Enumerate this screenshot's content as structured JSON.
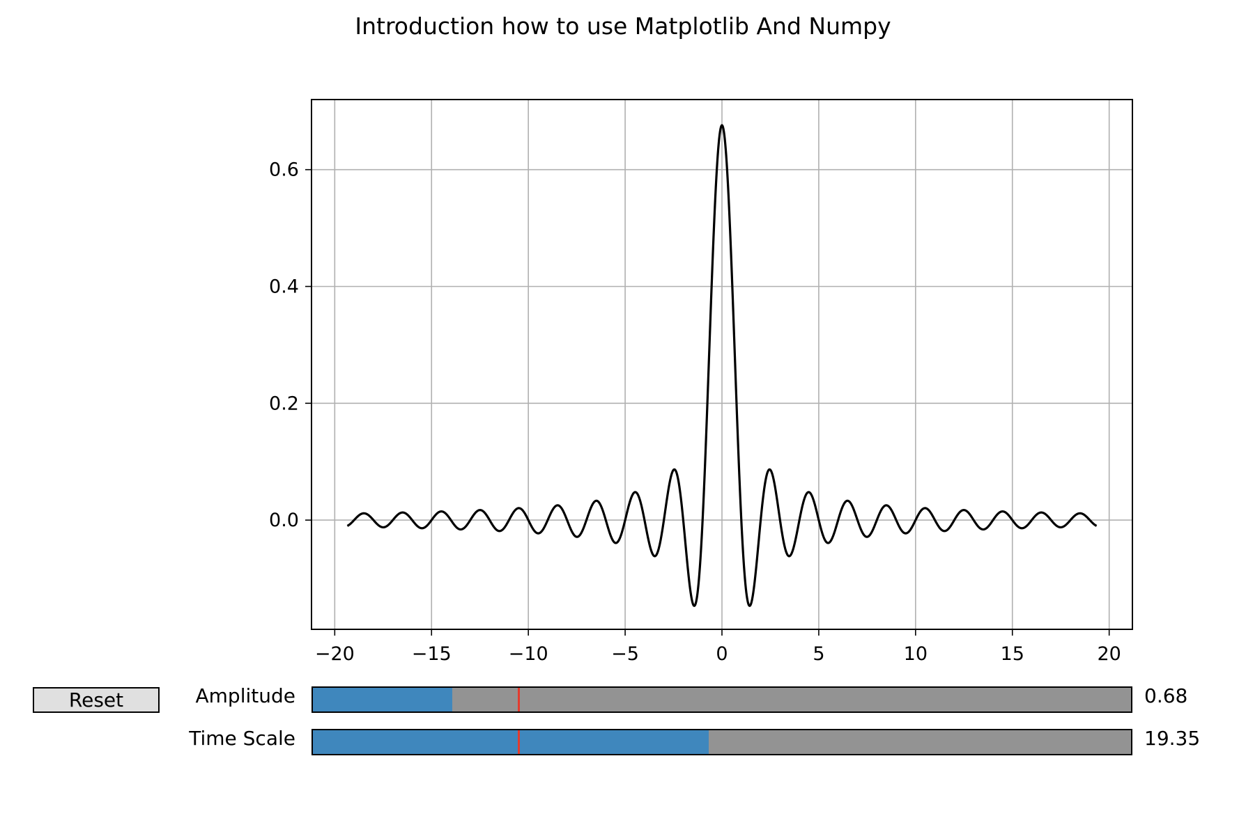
{
  "chart_data": {
    "type": "line",
    "title": "Introduction how to use Matplotlib And Numpy",
    "xlabel": "",
    "ylabel": "",
    "xlim": [
      -21.2,
      21.2
    ],
    "ylim": [
      -0.187,
      0.72
    ],
    "grid": true,
    "x_ticks": [
      -20,
      -15,
      -10,
      -5,
      0,
      5,
      10,
      15,
      20
    ],
    "x_tick_labels": [
      "−20",
      "−15",
      "−10",
      "−5",
      "0",
      "5",
      "10",
      "15",
      "20"
    ],
    "y_ticks": [
      0.0,
      0.2,
      0.4,
      0.6
    ],
    "y_tick_labels": [
      "0.0",
      "0.2",
      "0.4",
      "0.6"
    ],
    "series": [
      {
        "color": "#000000",
        "x_range": [
          -19.35,
          19.35
        ],
        "x": [
          -19.35,
          -18.3,
          -17.3,
          -16.3,
          -15.3,
          -14.3,
          -13.3,
          -12.3,
          -11.3,
          -10.3,
          -9.3,
          -8.3,
          -7.3,
          -6.3,
          -5.3,
          -4.3,
          -3.3,
          -2.3,
          -1.3,
          0,
          1.3,
          2.3,
          3.3,
          4.3,
          5.3,
          6.3,
          7.3,
          8.3,
          9.3,
          10.3,
          11.3,
          12.3,
          13.3,
          14.3,
          15.3,
          16.3,
          17.3,
          18.3,
          19.35
        ],
        "y": [
          -0.01,
          0.012,
          -0.013,
          0.013,
          -0.014,
          0.015,
          -0.016,
          0.017,
          -0.019,
          0.021,
          -0.023,
          0.026,
          -0.029,
          0.034,
          -0.04,
          0.049,
          -0.064,
          0.09,
          -0.16,
          0.676,
          -0.16,
          0.09,
          -0.064,
          0.049,
          -0.04,
          0.034,
          -0.029,
          0.026,
          -0.023,
          0.021,
          -0.019,
          0.017,
          -0.016,
          0.015,
          -0.014,
          0.013,
          -0.013,
          0.012,
          -0.01
        ],
        "peak": 0.676,
        "oscillation_period": 2.0
      }
    ]
  },
  "controls": {
    "reset_label": "Reset",
    "sliders": [
      {
        "label": "Amplitude",
        "value_text": "0.68",
        "fill_fraction": 0.17,
        "initial_fraction": 0.25
      },
      {
        "label": "Time Scale",
        "value_text": "19.35",
        "fill_fraction": 0.484,
        "initial_fraction": 0.25
      }
    ]
  },
  "colors": {
    "slider_fill": "#3f87bd",
    "slider_track": "#939393",
    "initial_marker": "#e33b2e",
    "grid": "#b0b0b0",
    "line": "#000000",
    "button_face": "#e0e0e0"
  }
}
